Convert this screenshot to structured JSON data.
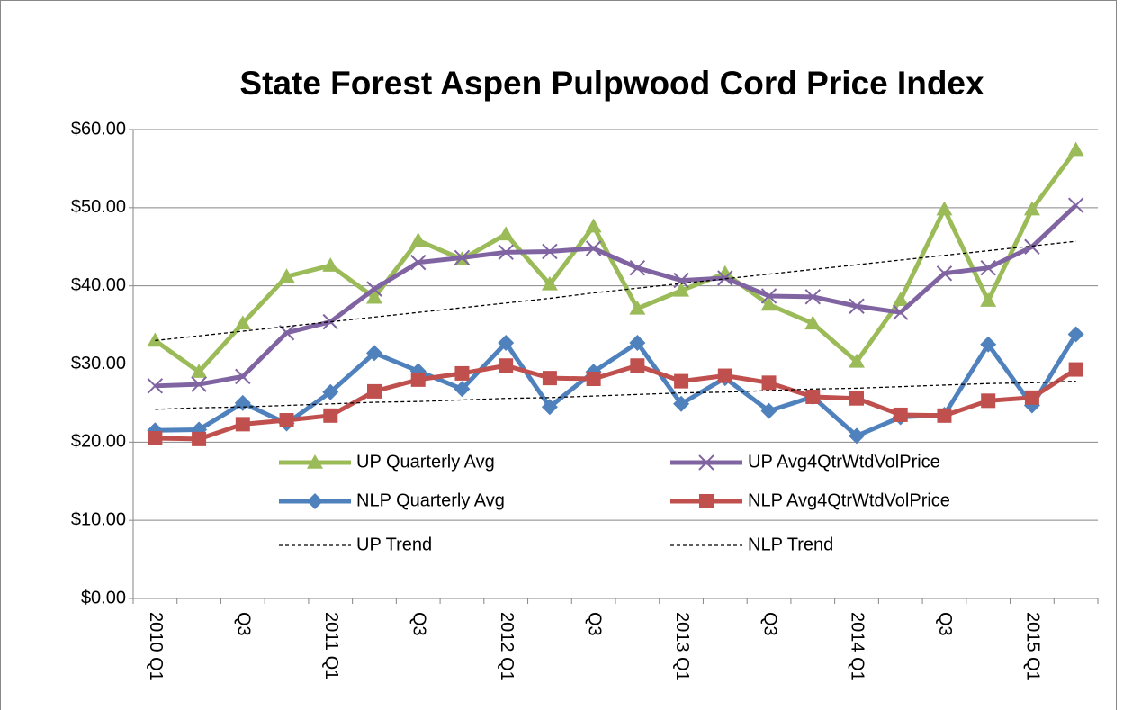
{
  "chart_data": {
    "type": "line",
    "title": "State Forest Aspen Pulpwood Cord Price Index",
    "categories": [
      "2010 Q1",
      null,
      "Q3",
      null,
      "2011 Q1",
      null,
      "Q3",
      null,
      "2012 Q1",
      null,
      "Q3",
      null,
      "2013 Q1",
      null,
      "Q3",
      null,
      "2014 Q1",
      null,
      "Q3",
      null,
      "2015 Q1",
      null
    ],
    "series": [
      {
        "name": "UP Quarterly Avg",
        "color": "#9bbb59",
        "marker": "triangle",
        "dash": false,
        "values": [
          33.0,
          29.0,
          35.2,
          41.2,
          42.6,
          38.5,
          45.8,
          43.4,
          46.6,
          40.2,
          47.6,
          37.1,
          39.4,
          41.6,
          37.6,
          35.2,
          30.3,
          38.2,
          49.8,
          38.1,
          49.8,
          57.4
        ]
      },
      {
        "name": "UP Avg4QtrWtdVolPrice",
        "color": "#8064a2",
        "marker": "x",
        "dash": false,
        "values": [
          27.2,
          27.4,
          28.4,
          34.0,
          35.4,
          39.6,
          43.0,
          43.6,
          44.3,
          44.4,
          44.8,
          42.3,
          40.7,
          41.0,
          38.7,
          38.6,
          37.4,
          36.6,
          41.6,
          42.3,
          45.0,
          50.3
        ]
      },
      {
        "name": "NLP Quarterly Avg",
        "color": "#4f81bd",
        "marker": "diamond",
        "dash": false,
        "values": [
          21.5,
          21.6,
          25.0,
          22.4,
          26.4,
          31.4,
          29.1,
          26.8,
          32.7,
          24.5,
          29.0,
          32.7,
          24.9,
          28.2,
          24.0,
          25.8,
          20.8,
          23.2,
          23.5,
          32.5,
          24.7,
          33.8
        ]
      },
      {
        "name": "NLP Avg4QtrWtdVolPrice",
        "color": "#c0504d",
        "marker": "square",
        "dash": false,
        "values": [
          20.5,
          20.4,
          22.3,
          22.8,
          23.4,
          26.5,
          28.0,
          28.8,
          29.8,
          28.2,
          28.1,
          29.8,
          27.8,
          28.5,
          27.6,
          25.8,
          25.6,
          23.5,
          23.4,
          25.3,
          25.7,
          29.3
        ]
      },
      {
        "name": "UP Trend",
        "color": "#000000",
        "marker": "none",
        "dash": true,
        "values": [
          33.0,
          33.6,
          34.2,
          34.8,
          35.4,
          36.0,
          36.6,
          37.2,
          37.8,
          38.4,
          39.1,
          39.7,
          40.3,
          40.9,
          41.5,
          42.1,
          42.7,
          43.3,
          43.9,
          44.5,
          45.1,
          45.7
        ]
      },
      {
        "name": "NLP Trend",
        "color": "#000000",
        "marker": "none",
        "dash": true,
        "values": [
          24.2,
          24.4,
          24.5,
          24.7,
          24.9,
          25.1,
          25.2,
          25.4,
          25.6,
          25.7,
          25.9,
          26.1,
          26.3,
          26.4,
          26.6,
          26.8,
          26.9,
          27.1,
          27.3,
          27.5,
          27.6,
          27.8
        ]
      }
    ],
    "ylim": [
      0,
      60
    ],
    "yticks": [
      {
        "value": 0,
        "label": "$0.00"
      },
      {
        "value": 10,
        "label": "$10.00"
      },
      {
        "value": 20,
        "label": "$20.00"
      },
      {
        "value": 30,
        "label": "$30.00"
      },
      {
        "value": 40,
        "label": "$40.00"
      },
      {
        "value": 50,
        "label": "$50.00"
      },
      {
        "value": 60,
        "label": "$60.00"
      }
    ],
    "grid": true
  }
}
